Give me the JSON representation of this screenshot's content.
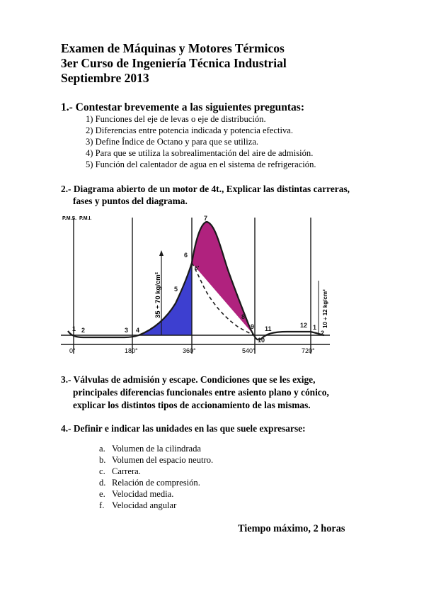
{
  "header": {
    "line1": "Examen de Máquinas y Motores Térmicos",
    "line2": "3er Curso de Ingeniería Técnica Industrial",
    "line3": "Septiembre 2013"
  },
  "q1": {
    "title": "1.- Contestar brevemente a las siguientes preguntas:",
    "items": [
      "1) Funciones  del eje de levas o eje de distribución.",
      "2) Diferencias entre potencia indicada y potencia efectiva.",
      "3) Define Índice de Octano y para que se utiliza.",
      "4) Para que se utiliza la sobrealimentación del aire de admisión.",
      "5) Función del calentador de agua en el sistema de refrigeración."
    ]
  },
  "q2": {
    "line1": "2.- Diagrama abierto de un motor de 4t., Explicar las distintas carreras,",
    "line2": "fases y puntos del diagrama."
  },
  "diagram": {
    "top_left_labels": [
      "P.M.S.",
      "P.M.I."
    ],
    "pressure_label": "35 ÷ 70 kg/cm²",
    "right_pressure_label": "10 ÷ 12 kg/cm²",
    "angles": [
      "0°",
      "180°",
      "360°",
      "540°",
      "720°"
    ],
    "points": [
      "1",
      "2",
      "3",
      "4",
      "5",
      "6",
      "7",
      "8",
      "9",
      "10",
      "11",
      "12",
      "1",
      "2",
      "6'"
    ],
    "colors": {
      "compression": "#3d3fd0",
      "expansion": "#b0227e",
      "line": "#1a1a1a"
    }
  },
  "q3": {
    "line1": "3.- Válvulas de admisión y escape. Condiciones que se les exige,",
    "line2": "principales diferencias funcionales entre asiento plano y cónico,",
    "line3": "explicar los distintos tipos de accionamiento de las mismas."
  },
  "q4": {
    "title": "4.- Definir e indicar las unidades en las que suele expresarse:",
    "items": [
      {
        "marker": "a.",
        "text": "Volumen de la cilindrada"
      },
      {
        "marker": "b.",
        "text": "Volumen del espacio neutro."
      },
      {
        "marker": "c.",
        "text": "Carrera."
      },
      {
        "marker": "d.",
        "text": "Relación de compresión."
      },
      {
        "marker": "e.",
        "text": "Velocidad media."
      },
      {
        "marker": "f.",
        "text": "Velocidad angular"
      }
    ]
  },
  "footer": {
    "time": "Tiempo máximo, 2 horas"
  }
}
